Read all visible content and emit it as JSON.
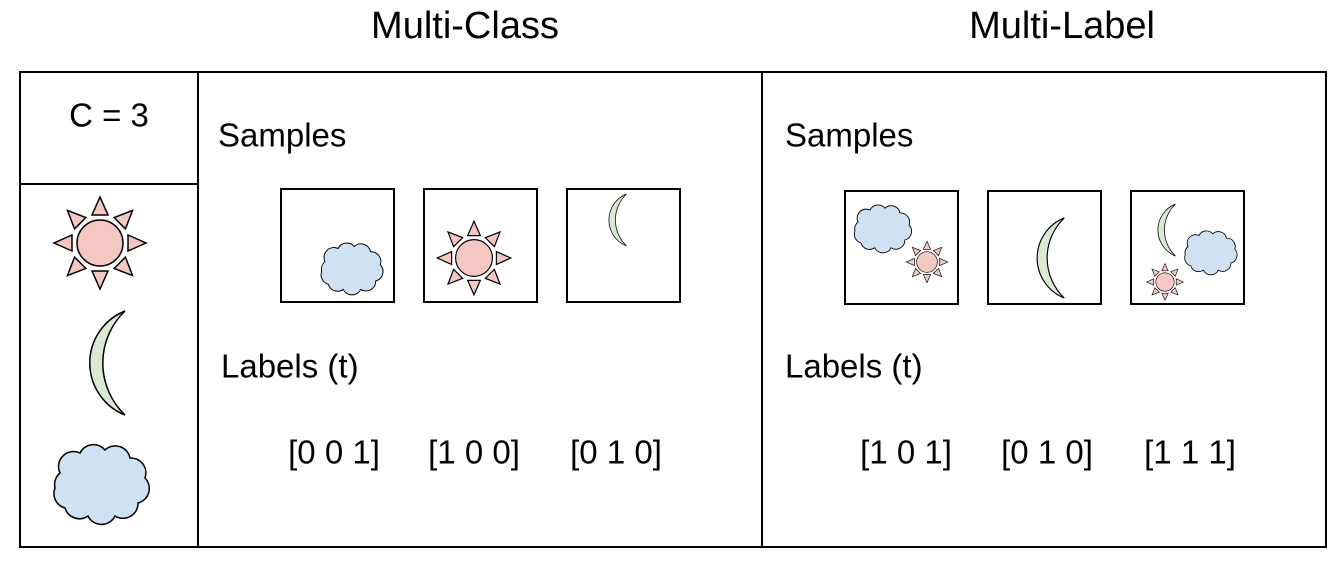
{
  "legend": {
    "title": "C = 3"
  },
  "panels": [
    {
      "title": "Multi-Class",
      "samples_label": "Samples",
      "labels_label": "Labels (t)",
      "labels": [
        "[0 0 1]",
        "[1 0 0]",
        "[0 1 0]"
      ]
    },
    {
      "title": "Multi-Label",
      "samples_label": "Samples",
      "labels_label": "Labels (t)",
      "labels": [
        "[1 0 1]",
        "[0 1 0]",
        "[1 1 1]"
      ]
    }
  ]
}
